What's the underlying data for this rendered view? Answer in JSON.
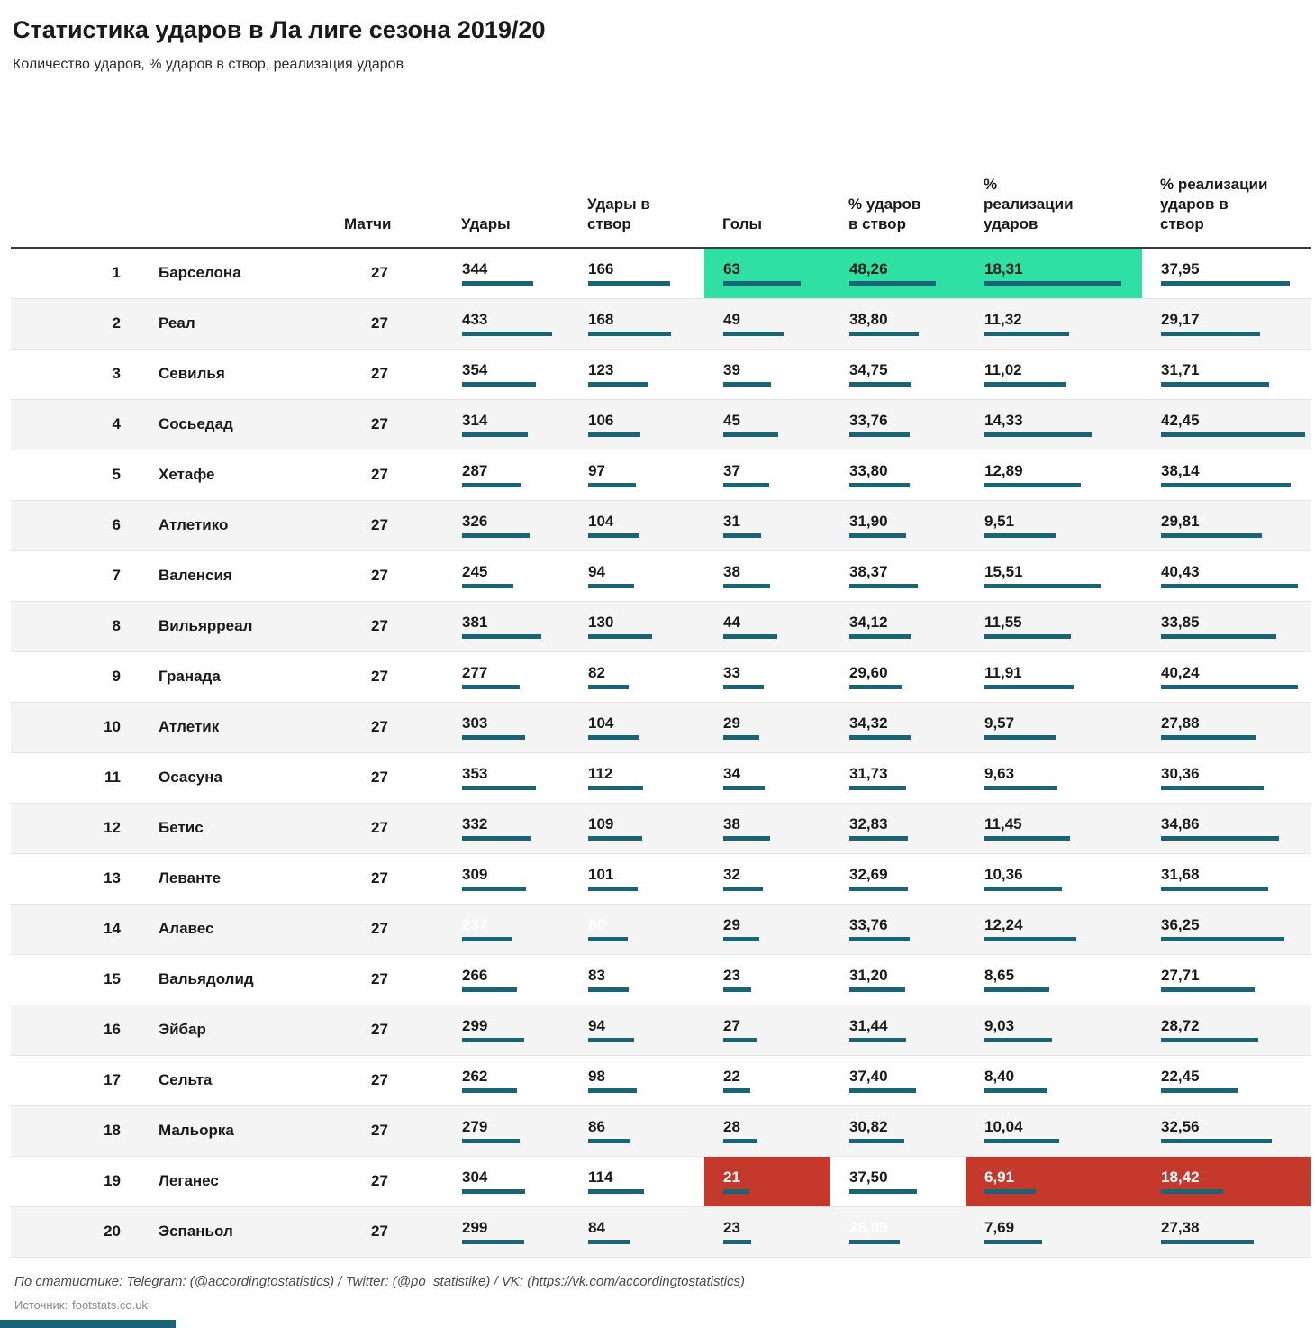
{
  "title": "Статистика ударов в Ла лиге сезона 2019/20",
  "subtitle": "Количество ударов, % ударов в створ, реализация ударов",
  "colors": {
    "bar": "#1a6478",
    "highlight_max": "#2ee0a3",
    "highlight_min": "#c4392b"
  },
  "chart_data": {
    "type": "table",
    "columns": {
      "matches": "Матчи",
      "shots": "Удары",
      "shots_on_target": "Удары в\nствор",
      "goals": "Голы",
      "pct_on_target": "% ударов\nв створ",
      "pct_conversion": "%\nреализации\nударов",
      "pct_conversion_on_target": "% реализации\nударов в\nствор"
    },
    "max": {
      "shots": 433,
      "shots_on_target": 168,
      "goals": 63,
      "pct_on_target": 48.26,
      "pct_conversion": 18.31,
      "pct_conversion_on_target": 42.45
    },
    "rows": [
      {
        "rank": "1",
        "team": "Барселона",
        "matches": "27",
        "shots": {
          "text": "344",
          "value": 344
        },
        "shots_on_target": {
          "text": "166",
          "value": 166
        },
        "goals": {
          "text": "63",
          "value": 63,
          "hl": "max"
        },
        "pct_on_target": {
          "text": "48,26",
          "value": 48.26,
          "hl": "max"
        },
        "pct_conversion": {
          "text": "18,31",
          "value": 18.31,
          "hl": "max"
        },
        "pct_conversion_on_target": {
          "text": "37,95",
          "value": 37.95
        }
      },
      {
        "rank": "2",
        "team": "Реал",
        "matches": "27",
        "shots": {
          "text": "433",
          "value": 433,
          "hl": "max"
        },
        "shots_on_target": {
          "text": "168",
          "value": 168,
          "hl": "max"
        },
        "goals": {
          "text": "49",
          "value": 49
        },
        "pct_on_target": {
          "text": "38,80",
          "value": 38.8
        },
        "pct_conversion": {
          "text": "11,32",
          "value": 11.32
        },
        "pct_conversion_on_target": {
          "text": "29,17",
          "value": 29.17
        }
      },
      {
        "rank": "3",
        "team": "Севилья",
        "matches": "27",
        "shots": {
          "text": "354",
          "value": 354
        },
        "shots_on_target": {
          "text": "123",
          "value": 123
        },
        "goals": {
          "text": "39",
          "value": 39
        },
        "pct_on_target": {
          "text": "34,75",
          "value": 34.75
        },
        "pct_conversion": {
          "text": "11,02",
          "value": 11.02
        },
        "pct_conversion_on_target": {
          "text": "31,71",
          "value": 31.71
        }
      },
      {
        "rank": "4",
        "team": "Сосьедад",
        "matches": "27",
        "shots": {
          "text": "314",
          "value": 314
        },
        "shots_on_target": {
          "text": "106",
          "value": 106
        },
        "goals": {
          "text": "45",
          "value": 45
        },
        "pct_on_target": {
          "text": "33,76",
          "value": 33.76
        },
        "pct_conversion": {
          "text": "14,33",
          "value": 14.33
        },
        "pct_conversion_on_target": {
          "text": "42,45",
          "value": 42.45,
          "hl": "max"
        }
      },
      {
        "rank": "5",
        "team": "Хетафе",
        "matches": "27",
        "shots": {
          "text": "287",
          "value": 287
        },
        "shots_on_target": {
          "text": "97",
          "value": 97
        },
        "goals": {
          "text": "37",
          "value": 37
        },
        "pct_on_target": {
          "text": "33,80",
          "value": 33.8
        },
        "pct_conversion": {
          "text": "12,89",
          "value": 12.89
        },
        "pct_conversion_on_target": {
          "text": "38,14",
          "value": 38.14
        }
      },
      {
        "rank": "6",
        "team": "Атлетико",
        "matches": "27",
        "shots": {
          "text": "326",
          "value": 326
        },
        "shots_on_target": {
          "text": "104",
          "value": 104
        },
        "goals": {
          "text": "31",
          "value": 31
        },
        "pct_on_target": {
          "text": "31,90",
          "value": 31.9
        },
        "pct_conversion": {
          "text": "9,51",
          "value": 9.51
        },
        "pct_conversion_on_target": {
          "text": "29,81",
          "value": 29.81
        }
      },
      {
        "rank": "7",
        "team": "Валенсия",
        "matches": "27",
        "shots": {
          "text": "245",
          "value": 245
        },
        "shots_on_target": {
          "text": "94",
          "value": 94
        },
        "goals": {
          "text": "38",
          "value": 38
        },
        "pct_on_target": {
          "text": "38,37",
          "value": 38.37
        },
        "pct_conversion": {
          "text": "15,51",
          "value": 15.51
        },
        "pct_conversion_on_target": {
          "text": "40,43",
          "value": 40.43
        }
      },
      {
        "rank": "8",
        "team": "Вильярреал",
        "matches": "27",
        "shots": {
          "text": "381",
          "value": 381
        },
        "shots_on_target": {
          "text": "130",
          "value": 130
        },
        "goals": {
          "text": "44",
          "value": 44
        },
        "pct_on_target": {
          "text": "34,12",
          "value": 34.12
        },
        "pct_conversion": {
          "text": "11,55",
          "value": 11.55
        },
        "pct_conversion_on_target": {
          "text": "33,85",
          "value": 33.85
        }
      },
      {
        "rank": "9",
        "team": "Гранада",
        "matches": "27",
        "shots": {
          "text": "277",
          "value": 277
        },
        "shots_on_target": {
          "text": "82",
          "value": 82
        },
        "goals": {
          "text": "33",
          "value": 33
        },
        "pct_on_target": {
          "text": "29,60",
          "value": 29.6
        },
        "pct_conversion": {
          "text": "11,91",
          "value": 11.91
        },
        "pct_conversion_on_target": {
          "text": "40,24",
          "value": 40.24
        }
      },
      {
        "rank": "10",
        "team": "Атлетик",
        "matches": "27",
        "shots": {
          "text": "303",
          "value": 303
        },
        "shots_on_target": {
          "text": "104",
          "value": 104
        },
        "goals": {
          "text": "29",
          "value": 29
        },
        "pct_on_target": {
          "text": "34,32",
          "value": 34.32
        },
        "pct_conversion": {
          "text": "9,57",
          "value": 9.57
        },
        "pct_conversion_on_target": {
          "text": "27,88",
          "value": 27.88
        }
      },
      {
        "rank": "11",
        "team": "Осасуна",
        "matches": "27",
        "shots": {
          "text": "353",
          "value": 353
        },
        "shots_on_target": {
          "text": "112",
          "value": 112
        },
        "goals": {
          "text": "34",
          "value": 34
        },
        "pct_on_target": {
          "text": "31,73",
          "value": 31.73
        },
        "pct_conversion": {
          "text": "9,63",
          "value": 9.63
        },
        "pct_conversion_on_target": {
          "text": "30,36",
          "value": 30.36
        }
      },
      {
        "rank": "12",
        "team": "Бетис",
        "matches": "27",
        "shots": {
          "text": "332",
          "value": 332
        },
        "shots_on_target": {
          "text": "109",
          "value": 109
        },
        "goals": {
          "text": "38",
          "value": 38
        },
        "pct_on_target": {
          "text": "32,83",
          "value": 32.83
        },
        "pct_conversion": {
          "text": "11,45",
          "value": 11.45
        },
        "pct_conversion_on_target": {
          "text": "34,86",
          "value": 34.86
        }
      },
      {
        "rank": "13",
        "team": "Леванте",
        "matches": "27",
        "shots": {
          "text": "309",
          "value": 309
        },
        "shots_on_target": {
          "text": "101",
          "value": 101
        },
        "goals": {
          "text": "32",
          "value": 32
        },
        "pct_on_target": {
          "text": "32,69",
          "value": 32.69
        },
        "pct_conversion": {
          "text": "10,36",
          "value": 10.36
        },
        "pct_conversion_on_target": {
          "text": "31,68",
          "value": 31.68
        }
      },
      {
        "rank": "14",
        "team": "Алавес",
        "matches": "27",
        "shots": {
          "text": "237",
          "value": 237,
          "hl": "min"
        },
        "shots_on_target": {
          "text": "80",
          "value": 80,
          "hl": "min"
        },
        "goals": {
          "text": "29",
          "value": 29
        },
        "pct_on_target": {
          "text": "33,76",
          "value": 33.76
        },
        "pct_conversion": {
          "text": "12,24",
          "value": 12.24
        },
        "pct_conversion_on_target": {
          "text": "36,25",
          "value": 36.25
        }
      },
      {
        "rank": "15",
        "team": "Вальядолид",
        "matches": "27",
        "shots": {
          "text": "266",
          "value": 266
        },
        "shots_on_target": {
          "text": "83",
          "value": 83
        },
        "goals": {
          "text": "23",
          "value": 23
        },
        "pct_on_target": {
          "text": "31,20",
          "value": 31.2
        },
        "pct_conversion": {
          "text": "8,65",
          "value": 8.65
        },
        "pct_conversion_on_target": {
          "text": "27,71",
          "value": 27.71
        }
      },
      {
        "rank": "16",
        "team": "Эйбар",
        "matches": "27",
        "shots": {
          "text": "299",
          "value": 299
        },
        "shots_on_target": {
          "text": "94",
          "value": 94
        },
        "goals": {
          "text": "27",
          "value": 27
        },
        "pct_on_target": {
          "text": "31,44",
          "value": 31.44
        },
        "pct_conversion": {
          "text": "9,03",
          "value": 9.03
        },
        "pct_conversion_on_target": {
          "text": "28,72",
          "value": 28.72
        }
      },
      {
        "rank": "17",
        "team": "Сельта",
        "matches": "27",
        "shots": {
          "text": "262",
          "value": 262
        },
        "shots_on_target": {
          "text": "98",
          "value": 98
        },
        "goals": {
          "text": "22",
          "value": 22
        },
        "pct_on_target": {
          "text": "37,40",
          "value": 37.4
        },
        "pct_conversion": {
          "text": "8,40",
          "value": 8.4
        },
        "pct_conversion_on_target": {
          "text": "22,45",
          "value": 22.45
        }
      },
      {
        "rank": "18",
        "team": "Мальорка",
        "matches": "27",
        "shots": {
          "text": "279",
          "value": 279
        },
        "shots_on_target": {
          "text": "86",
          "value": 86
        },
        "goals": {
          "text": "28",
          "value": 28
        },
        "pct_on_target": {
          "text": "30,82",
          "value": 30.82
        },
        "pct_conversion": {
          "text": "10,04",
          "value": 10.04
        },
        "pct_conversion_on_target": {
          "text": "32,56",
          "value": 32.56
        }
      },
      {
        "rank": "19",
        "team": "Леганес",
        "matches": "27",
        "shots": {
          "text": "304",
          "value": 304
        },
        "shots_on_target": {
          "text": "114",
          "value": 114
        },
        "goals": {
          "text": "21",
          "value": 21,
          "hl": "min"
        },
        "pct_on_target": {
          "text": "37,50",
          "value": 37.5
        },
        "pct_conversion": {
          "text": "6,91",
          "value": 6.91,
          "hl": "min"
        },
        "pct_conversion_on_target": {
          "text": "18,42",
          "value": 18.42,
          "hl": "min"
        }
      },
      {
        "rank": "20",
        "team": "Эспаньол",
        "matches": "27",
        "shots": {
          "text": "299",
          "value": 299
        },
        "shots_on_target": {
          "text": "84",
          "value": 84
        },
        "goals": {
          "text": "23",
          "value": 23
        },
        "pct_on_target": {
          "text": "28,09",
          "value": 28.09,
          "hl": "min"
        },
        "pct_conversion": {
          "text": "7,69",
          "value": 7.69
        },
        "pct_conversion_on_target": {
          "text": "27,38",
          "value": 27.38
        }
      }
    ]
  },
  "footer": {
    "credits": "По статистике: Telegram: (@accordingtostatistics) / Twitter: (@po_statistike) / VK: (https://vk.com/accordingtostatistics)",
    "source_label": "Источник:",
    "source_value": "footstats.co.uk"
  }
}
